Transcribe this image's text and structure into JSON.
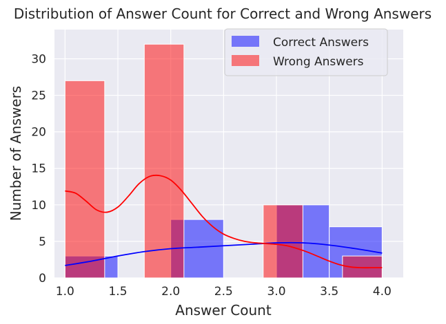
{
  "chart_data": {
    "type": "bar",
    "title": "Distribution of Answer Count for Correct and Wrong Answers",
    "xlabel": "Answer Count",
    "ylabel": "Number of Answers",
    "xlim": [
      0.9,
      4.2
    ],
    "ylim": [
      0,
      34
    ],
    "xticks": [
      1.0,
      1.5,
      2.0,
      2.5,
      3.0,
      3.5,
      4.0
    ],
    "yticks": [
      0,
      5,
      10,
      15,
      20,
      25,
      30
    ],
    "grid": true,
    "legend_position": "top-right",
    "series": [
      {
        "name": "Correct Answers",
        "color": "#0000ff",
        "bins": [
          {
            "x0": 1.0,
            "x1": 1.5,
            "count": 3
          },
          {
            "x0": 2.0,
            "x1": 2.5,
            "count": 8
          },
          {
            "x0": 3.0,
            "x1": 3.5,
            "count": 10
          },
          {
            "x0": 3.5,
            "x1": 4.0,
            "count": 7
          }
        ],
        "kde": [
          [
            1.0,
            1.7
          ],
          [
            1.25,
            2.3
          ],
          [
            1.5,
            3.0
          ],
          [
            1.75,
            3.6
          ],
          [
            2.0,
            4.0
          ],
          [
            2.25,
            4.2
          ],
          [
            2.5,
            4.4
          ],
          [
            2.75,
            4.6
          ],
          [
            3.0,
            4.8
          ],
          [
            3.25,
            4.8
          ],
          [
            3.5,
            4.5
          ],
          [
            3.75,
            4.0
          ],
          [
            4.0,
            3.4
          ]
        ]
      },
      {
        "name": "Wrong Answers",
        "color": "#ff0000",
        "bins": [
          {
            "x0": 1.0,
            "x1": 1.375,
            "count": 27
          },
          {
            "x0": 1.75,
            "x1": 2.125,
            "count": 32
          },
          {
            "x0": 2.875,
            "x1": 3.25,
            "count": 10
          },
          {
            "x0": 3.625,
            "x1": 4.0,
            "count": 3
          }
        ],
        "kde": [
          [
            1.0,
            11.9
          ],
          [
            1.1,
            11.6
          ],
          [
            1.2,
            10.5
          ],
          [
            1.3,
            9.3
          ],
          [
            1.4,
            9.0
          ],
          [
            1.5,
            9.7
          ],
          [
            1.6,
            11.2
          ],
          [
            1.7,
            12.9
          ],
          [
            1.8,
            13.9
          ],
          [
            1.9,
            14.0
          ],
          [
            2.0,
            13.4
          ],
          [
            2.1,
            12.0
          ],
          [
            2.2,
            10.2
          ],
          [
            2.3,
            8.4
          ],
          [
            2.4,
            7.0
          ],
          [
            2.5,
            6.0
          ],
          [
            2.6,
            5.4
          ],
          [
            2.7,
            5.0
          ],
          [
            2.8,
            4.8
          ],
          [
            2.9,
            4.7
          ],
          [
            3.0,
            4.6
          ],
          [
            3.1,
            4.4
          ],
          [
            3.2,
            4.0
          ],
          [
            3.3,
            3.5
          ],
          [
            3.4,
            2.9
          ],
          [
            3.5,
            2.3
          ],
          [
            3.6,
            1.8
          ],
          [
            3.7,
            1.5
          ],
          [
            3.8,
            1.4
          ],
          [
            3.9,
            1.4
          ],
          [
            4.0,
            1.4
          ]
        ]
      }
    ]
  }
}
